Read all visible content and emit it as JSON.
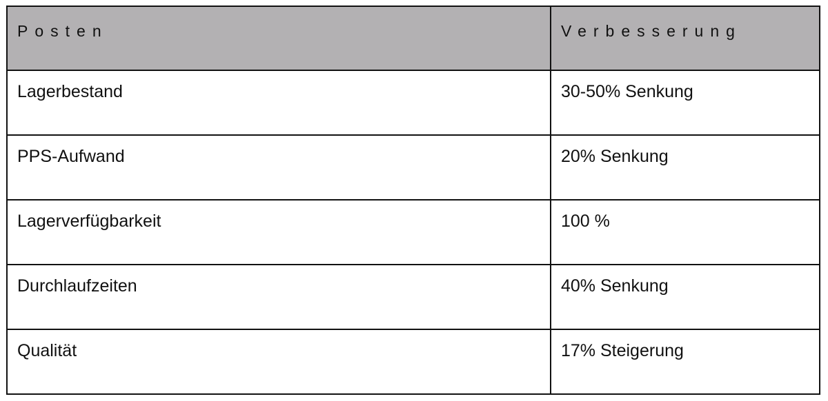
{
  "table": {
    "headers": [
      "Posten",
      "Verbesserung"
    ],
    "header_bg": "#b3b1b3",
    "rows": [
      [
        "Lagerbestand",
        "30-50% Senkung"
      ],
      [
        "PPS-Aufwand",
        "20% Senkung"
      ],
      [
        "Lagerverfügbarkeit",
        "100 %"
      ],
      [
        "Durchlaufzeiten",
        "40% Senkung"
      ],
      [
        "Qualität",
        "17% Steigerung"
      ]
    ]
  }
}
